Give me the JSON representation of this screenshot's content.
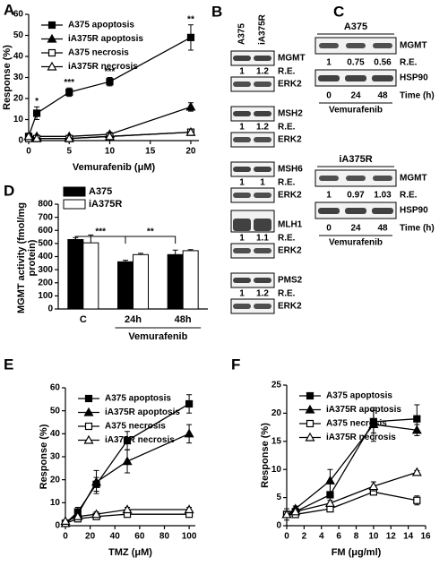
{
  "chart_data": [
    {
      "type": "line",
      "label": "A",
      "xlabel": "Vemurafenib (μM)",
      "ylabel": "Response (%)",
      "x": [
        0,
        1,
        5,
        10,
        20
      ],
      "xlim": [
        0,
        21
      ],
      "xticks": [
        0,
        5,
        10,
        15,
        20
      ],
      "ylim": [
        0,
        60
      ],
      "yticks": [
        0,
        10,
        20,
        30,
        40,
        50,
        60
      ],
      "grid": false,
      "legend": "upper left",
      "series": [
        {
          "name": "A375 apoptosis",
          "color": "#000000",
          "fill": "#000000",
          "marker": "square",
          "values": [
            2,
            13,
            23,
            28,
            49
          ],
          "errors": [
            1,
            3,
            2,
            2,
            6
          ]
        },
        {
          "name": "iA375R apoptosis",
          "color": "#000000",
          "fill": "#000000",
          "marker": "triangle",
          "values": [
            2,
            2,
            2,
            3,
            16
          ],
          "errors": [
            0.5,
            0.5,
            0.5,
            1,
            2
          ]
        },
        {
          "name": "A375 necrosis",
          "color": "#000000",
          "fill": "#ffffff",
          "marker": "square",
          "values": [
            1,
            1,
            1,
            2,
            4
          ]
        },
        {
          "name": "iA375R necrosis",
          "color": "#000000",
          "fill": "#ffffff",
          "marker": "triangle",
          "values": [
            2,
            1,
            1,
            2,
            4
          ]
        }
      ],
      "significance": [
        null,
        "*",
        "***",
        "***",
        "**"
      ]
    },
    {
      "type": "bar",
      "label": "D",
      "ylabel": "MGMT activity (fmol/mg protein)",
      "xlabel": "Vemurafenib",
      "categories": [
        "C",
        "24h",
        "48h"
      ],
      "ylim": [
        0,
        800
      ],
      "yticks": [
        0,
        100,
        200,
        300,
        400,
        500,
        600,
        700,
        800
      ],
      "grid": false,
      "legend": "upper left",
      "series": [
        {
          "name": "A375",
          "color": "#000000",
          "values": [
            530,
            360,
            415
          ],
          "errors": [
            15,
            12,
            35
          ]
        },
        {
          "name": "iA375R",
          "color": "#ffffff",
          "values": [
            505,
            415,
            445
          ],
          "errors": [
            60,
            10,
            8
          ]
        }
      ],
      "significance": [
        "***",
        "**"
      ]
    },
    {
      "type": "line",
      "label": "E",
      "xlabel": "TMZ (μM)",
      "ylabel": "Response (%)",
      "x": [
        0,
        10,
        25,
        50,
        100
      ],
      "xlim": [
        0,
        105
      ],
      "xticks": [
        0,
        20,
        40,
        60,
        80,
        100
      ],
      "ylim": [
        0,
        60
      ],
      "yticks": [
        0,
        10,
        20,
        30,
        40,
        50,
        60
      ],
      "grid": false,
      "legend": "upper left",
      "series": [
        {
          "name": "A375 apoptosis",
          "color": "#000000",
          "fill": "#000000",
          "marker": "square",
          "values": [
            1,
            6,
            18,
            37,
            53
          ],
          "errors": [
            1,
            2,
            3,
            4,
            4
          ]
        },
        {
          "name": "iA375R apoptosis",
          "color": "#000000",
          "fill": "#000000",
          "marker": "triangle",
          "values": [
            1,
            5,
            19,
            28,
            40
          ],
          "errors": [
            1,
            2,
            5,
            5,
            4
          ]
        },
        {
          "name": "A375 necrosis",
          "color": "#000000",
          "fill": "#ffffff",
          "marker": "square",
          "values": [
            1,
            3,
            4,
            5,
            5
          ],
          "errors": [
            0.5,
            1,
            1,
            1,
            1
          ]
        },
        {
          "name": "iA375R necrosis",
          "color": "#000000",
          "fill": "#ffffff",
          "marker": "triangle",
          "values": [
            2,
            4,
            5,
            7,
            7
          ],
          "errors": [
            0.5,
            1,
            1,
            1,
            1
          ]
        }
      ]
    },
    {
      "type": "line",
      "label": "F",
      "xlabel": "FM (μg/ml)",
      "ylabel": "Response (%)",
      "x": [
        0,
        1,
        5,
        10,
        15
      ],
      "xlim": [
        0,
        16
      ],
      "xticks": [
        0,
        2,
        4,
        6,
        8,
        10,
        12,
        14,
        16
      ],
      "ylim": [
        0,
        25
      ],
      "yticks": [
        0,
        5,
        10,
        15,
        20,
        25
      ],
      "grid": false,
      "legend": "upper left",
      "series": [
        {
          "name": "A375 apoptosis",
          "color": "#000000",
          "fill": "#000000",
          "marker": "square",
          "values": [
            2,
            2.5,
            5.5,
            18.5,
            19
          ],
          "errors": [
            1,
            0.5,
            2,
            2,
            2.5
          ]
        },
        {
          "name": "iA375R apoptosis",
          "color": "#000000",
          "fill": "#000000",
          "marker": "triangle",
          "values": [
            2,
            3,
            8,
            18,
            17
          ],
          "errors": [
            0.5,
            0.5,
            2,
            3,
            1
          ]
        },
        {
          "name": "A375 necrosis",
          "color": "#000000",
          "fill": "#ffffff",
          "marker": "square",
          "values": [
            2,
            2,
            3,
            6,
            4.5
          ],
          "errors": [
            0.5,
            0.5,
            0.5,
            0.5,
            0.8
          ]
        },
        {
          "name": "iA375R necrosis",
          "color": "#000000",
          "fill": "#ffffff",
          "marker": "triangle",
          "values": [
            2,
            2.5,
            4,
            7,
            9.5
          ],
          "errors": [
            0.5,
            0.5,
            0.5,
            0.8,
            0.3
          ]
        }
      ]
    }
  ],
  "blots": {
    "B": {
      "label": "B",
      "lanes": [
        "A375",
        "iA375R"
      ],
      "re_label": "R.E.",
      "loading": "ERK2",
      "rows": [
        {
          "protein": "MGMT",
          "re": [
            1,
            1.2
          ]
        },
        {
          "protein": "MSH2",
          "re": [
            1,
            1.2
          ]
        },
        {
          "protein": "MSH6",
          "re": [
            1,
            1
          ]
        },
        {
          "protein": "MLH1",
          "re": [
            1,
            1.1
          ]
        },
        {
          "protein": "PMS2",
          "re": [
            1,
            1.2
          ]
        }
      ]
    },
    "C": {
      "label": "C",
      "re_label": "R.E.",
      "time_label": "Time (h)",
      "treatment": "Vemurafenib",
      "protein": "MGMT",
      "loading": "HSP90",
      "times": [
        0,
        24,
        48
      ],
      "groups": [
        {
          "title": "A375",
          "re": [
            1,
            0.75,
            0.56
          ]
        },
        {
          "title": "iA375R",
          "re": [
            1,
            0.97,
            1.03
          ]
        }
      ]
    }
  }
}
